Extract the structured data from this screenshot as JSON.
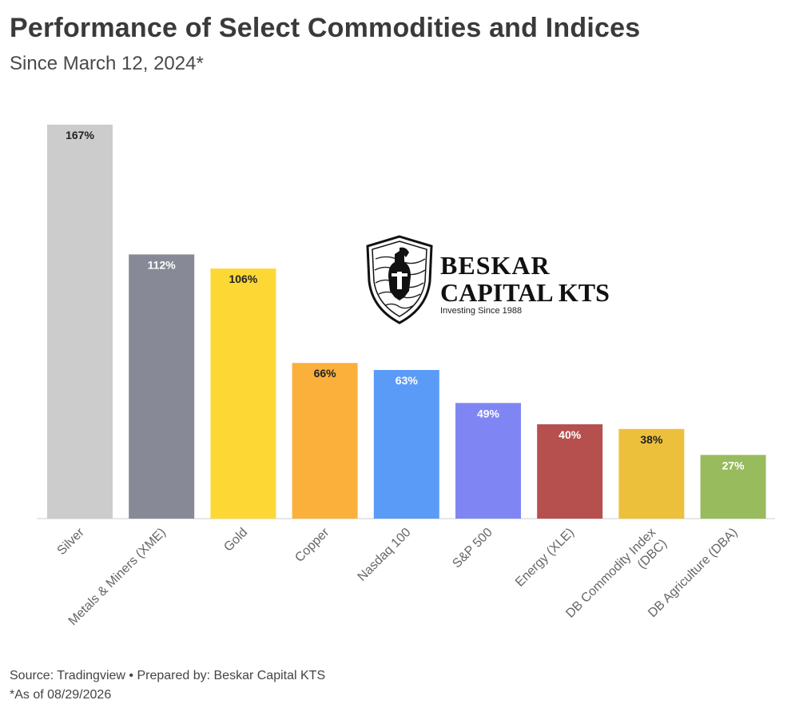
{
  "header": {
    "title": "Performance of Select Commodities and Indices",
    "subtitle": "Since March 12, 2024*"
  },
  "logo": {
    "line1": "BESKAR",
    "line2": "CAPITAL KTS",
    "tagline": "Investing Since 1988"
  },
  "footer": {
    "source": "Source: Tradingview • Prepared by: Beskar Capital KTS",
    "as_of": "*As of 08/29/2026"
  },
  "chart_data": {
    "type": "bar",
    "categories": [
      "Silver",
      "Metals & Miners (XME)",
      "Gold",
      "Copper",
      "Nasdaq 100",
      "S&P 500",
      "Energy (XLE)",
      "DB Commodity Index (DBC)",
      "DB Agriculture (DBA)"
    ],
    "values": [
      167,
      112,
      106,
      66,
      63,
      49,
      40,
      38,
      27
    ],
    "value_labels": [
      "167%",
      "112%",
      "106%",
      "66%",
      "63%",
      "49%",
      "40%",
      "38%",
      "27%"
    ],
    "colors": [
      "#cccccc",
      "#878a96",
      "#fdd835",
      "#fbb03b",
      "#5b9bf8",
      "#7f86f3",
      "#b5504e",
      "#edc03c",
      "#98bb5d"
    ],
    "label_colors": [
      "#222222",
      "#ffffff",
      "#222222",
      "#222222",
      "#ffffff",
      "#ffffff",
      "#ffffff",
      "#222222",
      "#ffffff"
    ],
    "ylim": [
      0,
      167
    ],
    "grid": false,
    "legend": "none"
  }
}
